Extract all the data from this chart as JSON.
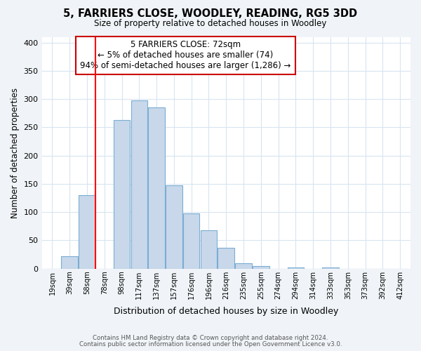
{
  "title": "5, FARRIERS CLOSE, WOODLEY, READING, RG5 3DD",
  "subtitle": "Size of property relative to detached houses in Woodley",
  "xlabel": "Distribution of detached houses by size in Woodley",
  "ylabel": "Number of detached properties",
  "bar_labels": [
    "19sqm",
    "39sqm",
    "58sqm",
    "78sqm",
    "98sqm",
    "117sqm",
    "137sqm",
    "157sqm",
    "176sqm",
    "196sqm",
    "216sqm",
    "235sqm",
    "255sqm",
    "274sqm",
    "294sqm",
    "314sqm",
    "333sqm",
    "353sqm",
    "373sqm",
    "392sqm",
    "412sqm"
  ],
  "bar_heights": [
    0,
    22,
    130,
    0,
    263,
    298,
    285,
    147,
    98,
    68,
    37,
    9,
    5,
    0,
    2,
    0,
    2,
    0,
    0,
    0,
    0
  ],
  "bar_color": "#c8d8ea",
  "bar_edge_color": "#7aadd4",
  "vline_color": "#ff0000",
  "annotation_title": "5 FARRIERS CLOSE: 72sqm",
  "annotation_line1": "← 5% of detached houses are smaller (74)",
  "annotation_line2": "94% of semi-detached houses are larger (1,286) →",
  "annotation_box_facecolor": "#ffffff",
  "annotation_box_edgecolor": "#cc0000",
  "ylim": [
    0,
    410
  ],
  "yticks": [
    0,
    50,
    100,
    150,
    200,
    250,
    300,
    350,
    400
  ],
  "footer1": "Contains HM Land Registry data © Crown copyright and database right 2024.",
  "footer2": "Contains public sector information licensed under the Open Government Licence v3.0.",
  "fig_bg_color": "#f0f4f8",
  "plot_bg_color": "#ffffff",
  "grid_color": "#d8e4f0"
}
